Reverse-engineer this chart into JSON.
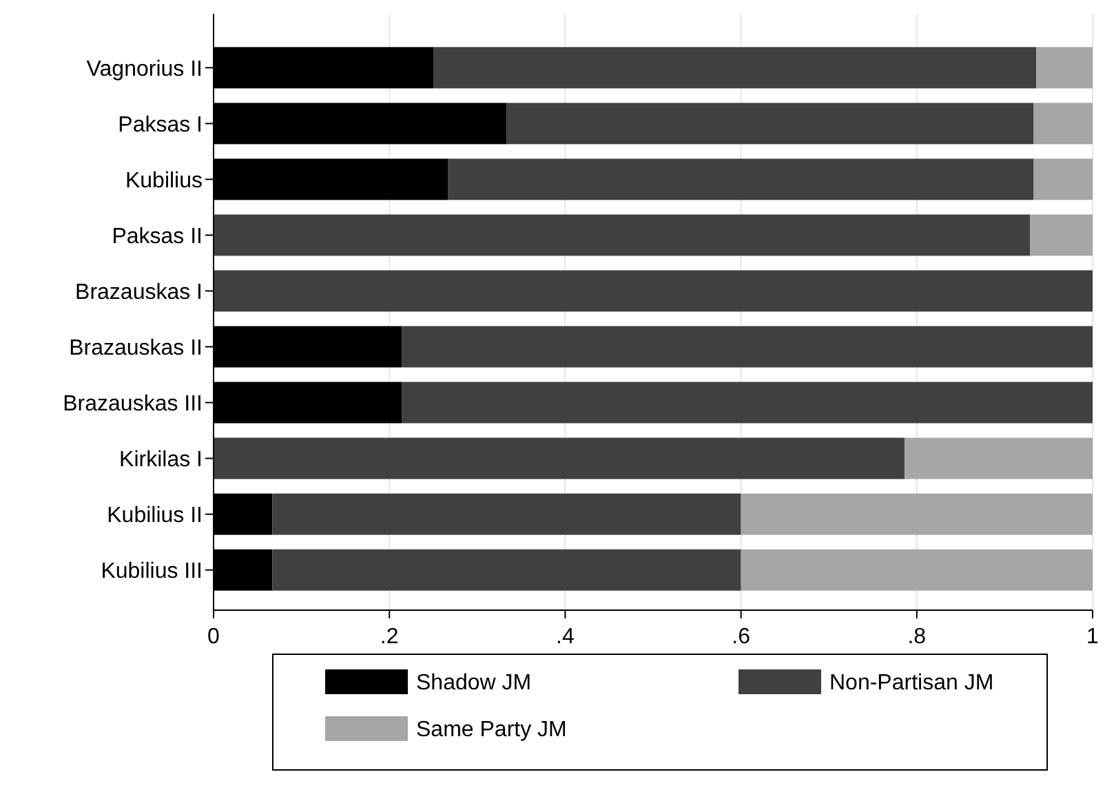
{
  "chart_data": {
    "type": "bar",
    "orientation": "horizontal",
    "stacked": true,
    "categories": [
      "Vagnorius II",
      "Paksas I",
      "Kubilius",
      "Paksas II",
      "Brazauskas I",
      "Brazauskas II",
      "Brazauskas III",
      "Kirkilas I",
      "Kubilius II",
      "Kubilius III"
    ],
    "series": [
      {
        "name": "Shadow JM",
        "color": "#000000",
        "values": [
          0.25,
          0.333,
          0.267,
          0,
          0,
          0.214,
          0.214,
          0,
          0.067,
          0.067
        ]
      },
      {
        "name": "Non-Partisan JM",
        "color": "#404040",
        "values": [
          0.686,
          0.6,
          0.666,
          0.929,
          1,
          0.786,
          0.786,
          0.786,
          0.533,
          0.533
        ]
      },
      {
        "name": "Same Party JM",
        "color": "#a6a6a6",
        "values": [
          0.064,
          0.067,
          0.067,
          0.071,
          0,
          0,
          0,
          0.214,
          0.4,
          0.4
        ]
      }
    ],
    "xlim": [
      0,
      1
    ],
    "xticks": [
      0,
      {
        "value": 0.2,
        "label": ".2"
      },
      {
        "value": 0.4,
        "label": ".4"
      },
      {
        "value": 0.6,
        "label": ".6"
      },
      {
        "value": 0.8,
        "label": ".8"
      },
      1
    ],
    "grid": "x",
    "legend": "bottom"
  }
}
